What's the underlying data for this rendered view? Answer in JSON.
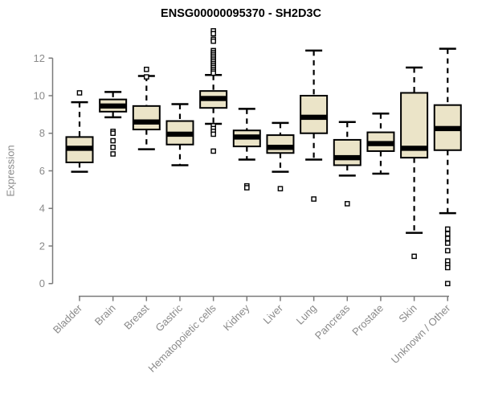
{
  "chart_data": {
    "type": "boxplot",
    "title": "ENSG00000095370 - SH2D3C",
    "ylabel": "Expression",
    "xlabel": "",
    "ylim": [
      0,
      12
    ],
    "yticks": [
      0,
      2,
      4,
      6,
      8,
      10,
      12
    ],
    "grid": "off",
    "legend": "none",
    "categories": [
      "Bladder",
      "Brain",
      "Breast",
      "Gastric",
      "Hematopoietic cells",
      "Kidney",
      "Liver",
      "Lung",
      "Pancreas",
      "Prostate",
      "Skin",
      "Unknown / Other"
    ],
    "boxes": [
      {
        "category": "Bladder",
        "whisker_low": 5.95,
        "q1": 6.45,
        "median": 7.2,
        "q3": 7.8,
        "whisker_high": 9.65,
        "outliers": [
          10.15
        ]
      },
      {
        "category": "Brain",
        "whisker_low": 8.85,
        "q1": 9.15,
        "median": 9.45,
        "q3": 9.8,
        "whisker_high": 10.2,
        "outliers": [
          8.1,
          8.0,
          7.6,
          7.25,
          6.9
        ]
      },
      {
        "category": "Breast",
        "whisker_low": 7.15,
        "q1": 8.2,
        "median": 8.6,
        "q3": 9.45,
        "whisker_high": 11.05,
        "outliers": [
          11.4,
          11.0
        ]
      },
      {
        "category": "Gastric",
        "whisker_low": 6.3,
        "q1": 7.4,
        "median": 7.95,
        "q3": 8.65,
        "whisker_high": 9.55,
        "outliers": []
      },
      {
        "category": "Hematopoietic cells",
        "whisker_low": 8.5,
        "q1": 9.35,
        "median": 9.85,
        "q3": 10.25,
        "whisker_high": 11.1,
        "outliers": [
          13.45,
          13.3,
          13.0,
          12.9,
          12.4,
          12.3,
          12.2,
          12.1,
          12.0,
          11.9,
          11.8,
          11.7,
          11.6,
          11.5,
          11.4,
          11.3,
          11.2,
          8.4,
          8.25,
          8.1,
          7.95,
          7.05
        ]
      },
      {
        "category": "Kidney",
        "whisker_low": 6.6,
        "q1": 7.3,
        "median": 7.8,
        "q3": 8.15,
        "whisker_high": 9.3,
        "outliers": [
          5.2,
          5.1
        ]
      },
      {
        "category": "Liver",
        "whisker_low": 5.95,
        "q1": 6.95,
        "median": 7.25,
        "q3": 7.9,
        "whisker_high": 8.55,
        "outliers": [
          5.05
        ]
      },
      {
        "category": "Lung",
        "whisker_low": 6.6,
        "q1": 8.0,
        "median": 8.85,
        "q3": 10.0,
        "whisker_high": 12.4,
        "outliers": [
          4.5
        ]
      },
      {
        "category": "Pancreas",
        "whisker_low": 5.75,
        "q1": 6.3,
        "median": 6.7,
        "q3": 7.65,
        "whisker_high": 8.6,
        "outliers": [
          4.25
        ]
      },
      {
        "category": "Prostate",
        "whisker_low": 5.85,
        "q1": 7.05,
        "median": 7.45,
        "q3": 8.05,
        "whisker_high": 9.05,
        "outliers": []
      },
      {
        "category": "Skin",
        "whisker_low": 2.7,
        "q1": 6.7,
        "median": 7.2,
        "q3": 10.15,
        "whisker_high": 11.5,
        "outliers": [
          1.45
        ]
      },
      {
        "category": "Unknown / Other",
        "whisker_low": 3.75,
        "q1": 7.1,
        "median": 8.25,
        "q3": 9.5,
        "whisker_high": 12.5,
        "outliers": [
          2.9,
          2.65,
          2.4,
          2.15,
          1.75,
          1.2,
          1.0,
          0.85,
          0.0
        ]
      }
    ],
    "colors": {
      "box_fill": "#EBE4C8",
      "box_border": "#000000",
      "median": "#000000",
      "whisker": "#000000",
      "axis_line": "#7a7a7a",
      "tick_label": "#8a8a8a",
      "title": "#000000",
      "background": "#ffffff"
    }
  }
}
